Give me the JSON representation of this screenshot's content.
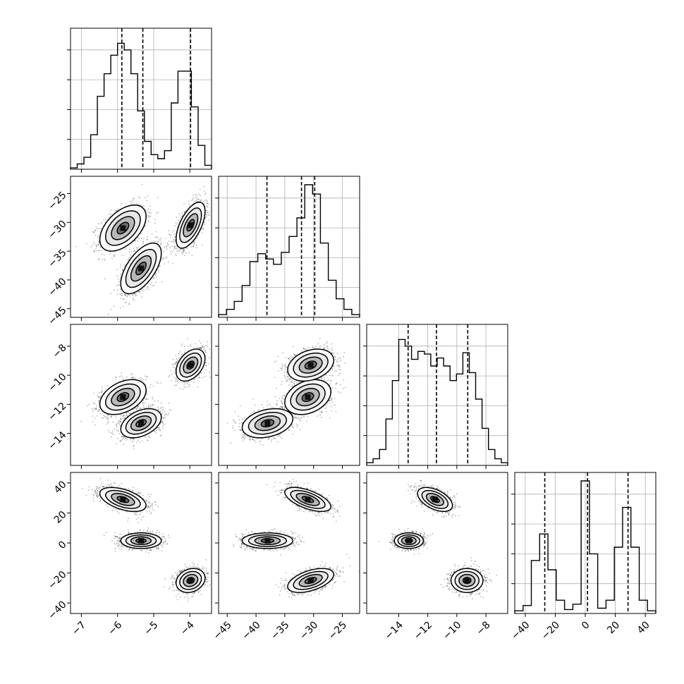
{
  "chart_data": {
    "type": "corner",
    "grid": true,
    "parameters": [
      {
        "range": [
          -7.3,
          -3.4
        ],
        "ticks": [
          -7,
          -6,
          -5,
          -4
        ],
        "tick_labels": [
          "−7",
          "−6",
          "−5",
          "−4"
        ],
        "modes": [
          -5.85,
          -5.35,
          -4.0
        ],
        "quantiles": [
          -5.88,
          -5.3,
          -3.98
        ],
        "hist": [
          0.01,
          0.04,
          0.09,
          0.26,
          0.55,
          0.72,
          0.86,
          0.95,
          0.9,
          0.72,
          0.44,
          0.21,
          0.11,
          0.08,
          0.14,
          0.5,
          0.74,
          0.74,
          0.47,
          0.18,
          0.03
        ]
      },
      {
        "range": [
          -46.5,
          -22.0
        ],
        "ticks": [
          -45,
          -40,
          -35,
          -30,
          -25
        ],
        "tick_labels": [
          "−45",
          "−40",
          "−35",
          "−30",
          "−25"
        ],
        "modes": [
          -38.0,
          -31.0
        ],
        "quantiles": [
          -38.1,
          -32.1,
          -29.8
        ],
        "hist": [
          0.02,
          0.06,
          0.12,
          0.24,
          0.42,
          0.48,
          0.44,
          0.4,
          0.49,
          0.61,
          0.75,
          1.0,
          0.93,
          0.56,
          0.28,
          0.14,
          0.06,
          0.02
        ]
      },
      {
        "range": [
          -16.2,
          -6.5
        ],
        "ticks": [
          -14,
          -12,
          -10,
          -8
        ],
        "tick_labels": [
          "−14",
          "−12",
          "−10",
          "−8"
        ],
        "modes": [
          -13.3,
          -11.4,
          -9.2
        ],
        "quantiles": [
          -13.35,
          -11.4,
          -9.25
        ],
        "hist": [
          0.02,
          0.05,
          0.12,
          0.35,
          0.64,
          0.95,
          0.9,
          0.8,
          0.86,
          0.84,
          0.75,
          0.81,
          0.75,
          0.64,
          0.69,
          0.85,
          0.7,
          0.5,
          0.28,
          0.12,
          0.05,
          0.02
        ]
      },
      {
        "range": [
          -47,
          47
        ],
        "ticks": [
          -40,
          -20,
          0,
          20,
          40
        ],
        "tick_labels": [
          "−40",
          "−20",
          "0",
          "20",
          "40"
        ],
        "modes": [
          -27,
          2,
          28
        ],
        "quantiles": [
          -27,
          1.5,
          28.5
        ],
        "hist": [
          0.02,
          0.06,
          0.4,
          0.6,
          0.33,
          0.1,
          0.03,
          0.07,
          1.0,
          0.45,
          0.04,
          0.1,
          0.5,
          0.8,
          0.5,
          0.1,
          0.02
        ]
      }
    ],
    "clusters": [
      {
        "mean": [
          -5.85,
          -31.0,
          -11.5,
          29.0
        ],
        "sd": [
          0.32,
          2.0,
          0.6,
          4.0
        ],
        "rho": {
          "0-1": 0.5,
          "0-2": 0.4,
          "0-3": -0.5,
          "1-2": 0.3,
          "1-3": -0.6,
          "2-3": -0.5
        }
      },
      {
        "mean": [
          -5.35,
          -38.0,
          -13.3,
          1.5
        ],
        "sd": [
          0.28,
          2.2,
          0.5,
          2.6
        ],
        "rho": {
          "0-1": 0.6,
          "0-2": 0.4,
          "0-3": 0.0,
          "1-2": 0.3,
          "1-3": 0.0,
          "2-3": 0.0
        }
      },
      {
        "mean": [
          -3.98,
          -30.5,
          -9.3,
          -25.0
        ],
        "sd": [
          0.2,
          2.0,
          0.55,
          4.0
        ],
        "rho": {
          "0-1": 0.6,
          "0-2": 0.4,
          "0-3": 0.2,
          "1-2": 0.3,
          "1-3": 0.5,
          "2-3": 0.0
        }
      }
    ]
  }
}
